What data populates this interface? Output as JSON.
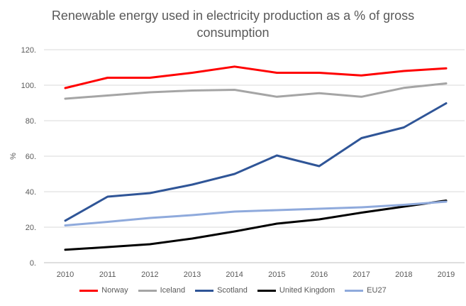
{
  "chart_data": {
    "type": "line",
    "title": "Renewable energy used in electricity production as a % of gross consumption",
    "title_lines": [
      "Renewable energy used in electricity production as a % of gross",
      "consumption"
    ],
    "xlabel": "",
    "ylabel": "%",
    "ylim": [
      0,
      120
    ],
    "yticks": [
      0,
      20,
      40,
      60,
      80,
      100,
      120
    ],
    "ytick_labels": [
      "0.",
      "20.",
      "40.",
      "60.",
      "80.",
      "100.",
      "120."
    ],
    "grid": "horizontal",
    "legend_position": "bottom",
    "categories": [
      "2010",
      "2011",
      "2012",
      "2013",
      "2014",
      "2015",
      "2016",
      "2017",
      "2018",
      "2019"
    ],
    "series": [
      {
        "name": "Norway",
        "color": "#ff0000",
        "values": [
          98.4,
          104.2,
          104.2,
          107.0,
          110.5,
          107.0,
          107.0,
          105.5,
          108.0,
          109.5
        ]
      },
      {
        "name": "Iceland",
        "color": "#a5a5a5",
        "values": [
          92.4,
          94.2,
          96.0,
          97.0,
          97.4,
          93.5,
          95.5,
          93.5,
          98.5,
          101.0
        ]
      },
      {
        "name": "Scotland",
        "color": "#2f5597",
        "values": [
          23.7,
          37.2,
          39.2,
          44.0,
          50.0,
          60.4,
          54.4,
          70.2,
          76.2,
          89.8
        ]
      },
      {
        "name": "United Kingdom",
        "color": "#000000",
        "values": [
          7.3,
          8.8,
          10.4,
          13.6,
          17.6,
          22.0,
          24.4,
          28.2,
          31.6,
          35.0
        ]
      },
      {
        "name": "EU27",
        "color": "#8faadc",
        "values": [
          21.0,
          23.0,
          25.2,
          26.8,
          28.8,
          29.6,
          30.4,
          31.2,
          32.6,
          34.4
        ]
      }
    ]
  }
}
